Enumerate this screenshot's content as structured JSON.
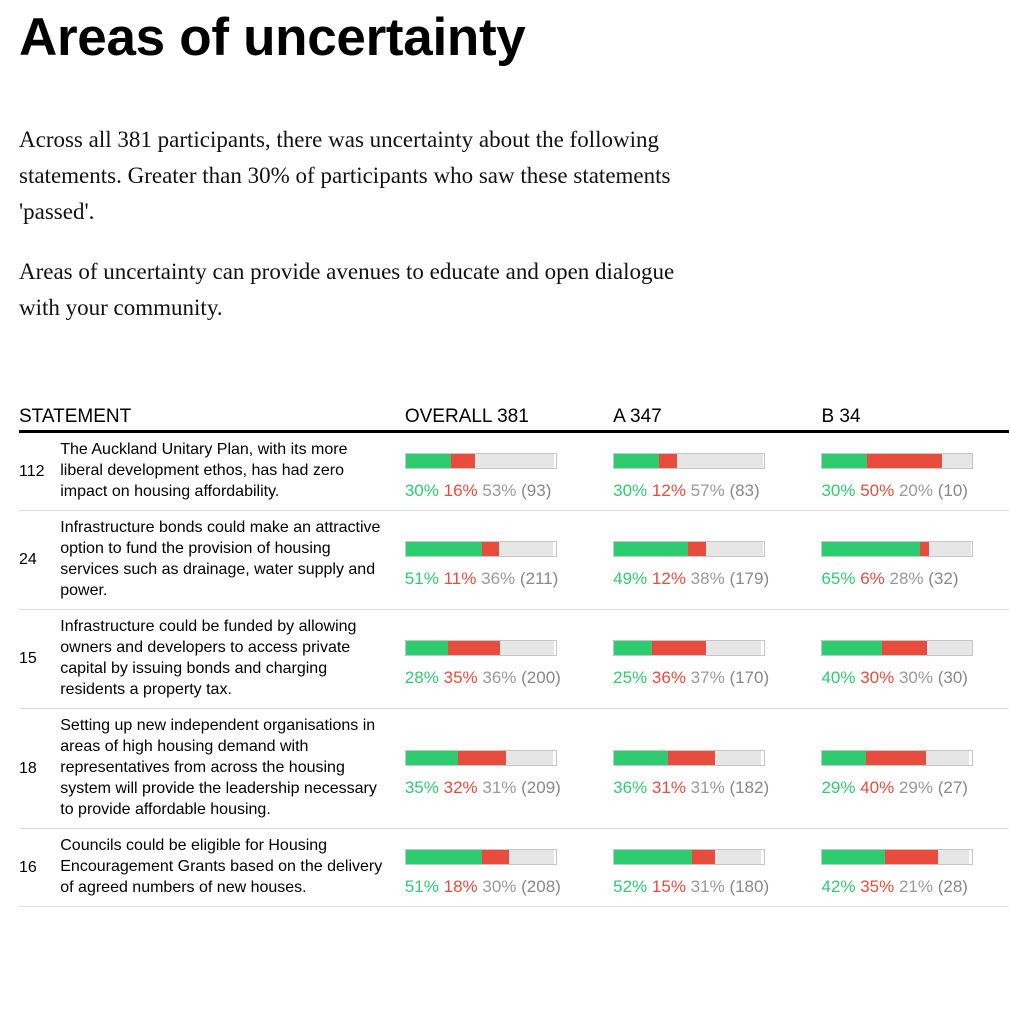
{
  "title": "Areas of uncertainty",
  "intro": [
    "Across all 381 participants, there was uncertainty about the following statements. Greater than 30% of participants who saw these statements 'passed'.",
    "Areas of uncertainty can provide avenues to educate and open dialogue with your community."
  ],
  "headers": {
    "statement": "STATEMENT",
    "overall": "OVERALL 381",
    "a": "A 347",
    "b": "B 34"
  },
  "colors": {
    "agree": "#2ecc71",
    "disagree": "#e74c3c",
    "pass": "#e6e6e6"
  },
  "rows": [
    {
      "id": "112",
      "text": "The Auckland Unitary Plan, with its more liberal development ethos, has had zero impact on housing affordability.",
      "groups": [
        {
          "agree": 30,
          "disagree": 16,
          "pass": 53,
          "agree_label": "30%",
          "disagree_label": "16%",
          "pass_label": "53%",
          "count": "(93)"
        },
        {
          "agree": 30,
          "disagree": 12,
          "pass": 57,
          "agree_label": "30%",
          "disagree_label": "12%",
          "pass_label": "57%",
          "count": "(83)"
        },
        {
          "agree": 30,
          "disagree": 50,
          "pass": 20,
          "agree_label": "30%",
          "disagree_label": "50%",
          "pass_label": "20%",
          "count": "(10)"
        }
      ]
    },
    {
      "id": "24",
      "text": "Infrastructure bonds could make an attractive option to fund the provision of housing services such as drainage, water supply and power.",
      "groups": [
        {
          "agree": 51,
          "disagree": 11,
          "pass": 36,
          "agree_label": "51%",
          "disagree_label": "11%",
          "pass_label": "36%",
          "count": "(211)"
        },
        {
          "agree": 49,
          "disagree": 12,
          "pass": 38,
          "agree_label": "49%",
          "disagree_label": "12%",
          "pass_label": "38%",
          "count": "(179)"
        },
        {
          "agree": 65,
          "disagree": 6,
          "pass": 28,
          "agree_label": "65%",
          "disagree_label": "6%",
          "pass_label": "28%",
          "count": "(32)"
        }
      ]
    },
    {
      "id": "15",
      "text": "Infrastructure could be funded by allowing owners and developers to access private capital by issuing bonds and charging residents a property tax.",
      "groups": [
        {
          "agree": 28,
          "disagree": 35,
          "pass": 36,
          "agree_label": "28%",
          "disagree_label": "35%",
          "pass_label": "36%",
          "count": "(200)"
        },
        {
          "agree": 25,
          "disagree": 36,
          "pass": 37,
          "agree_label": "25%",
          "disagree_label": "36%",
          "pass_label": "37%",
          "count": "(170)"
        },
        {
          "agree": 40,
          "disagree": 30,
          "pass": 30,
          "agree_label": "40%",
          "disagree_label": "30%",
          "pass_label": "30%",
          "count": "(30)"
        }
      ]
    },
    {
      "id": "18",
      "text": "Setting up new independent organisations in areas of high housing demand with representatives from across the housing system will provide the leadership necessary to provide affordable housing.",
      "groups": [
        {
          "agree": 35,
          "disagree": 32,
          "pass": 31,
          "agree_label": "35%",
          "disagree_label": "32%",
          "pass_label": "31%",
          "count": "(209)"
        },
        {
          "agree": 36,
          "disagree": 31,
          "pass": 31,
          "agree_label": "36%",
          "disagree_label": "31%",
          "pass_label": "31%",
          "count": "(182)"
        },
        {
          "agree": 29,
          "disagree": 40,
          "pass": 29,
          "agree_label": "29%",
          "disagree_label": "40%",
          "pass_label": "29%",
          "count": "(27)"
        }
      ]
    },
    {
      "id": "16",
      "text": "Councils could be eligible for Housing Encouragement Grants based on the delivery of agreed numbers of new houses.",
      "groups": [
        {
          "agree": 51,
          "disagree": 18,
          "pass": 30,
          "agree_label": "51%",
          "disagree_label": "18%",
          "pass_label": "30%",
          "count": "(208)"
        },
        {
          "agree": 52,
          "disagree": 15,
          "pass": 31,
          "agree_label": "52%",
          "disagree_label": "15%",
          "pass_label": "31%",
          "count": "(180)"
        },
        {
          "agree": 42,
          "disagree": 35,
          "pass": 21,
          "agree_label": "42%",
          "disagree_label": "35%",
          "pass_label": "21%",
          "count": "(28)"
        }
      ]
    }
  ]
}
